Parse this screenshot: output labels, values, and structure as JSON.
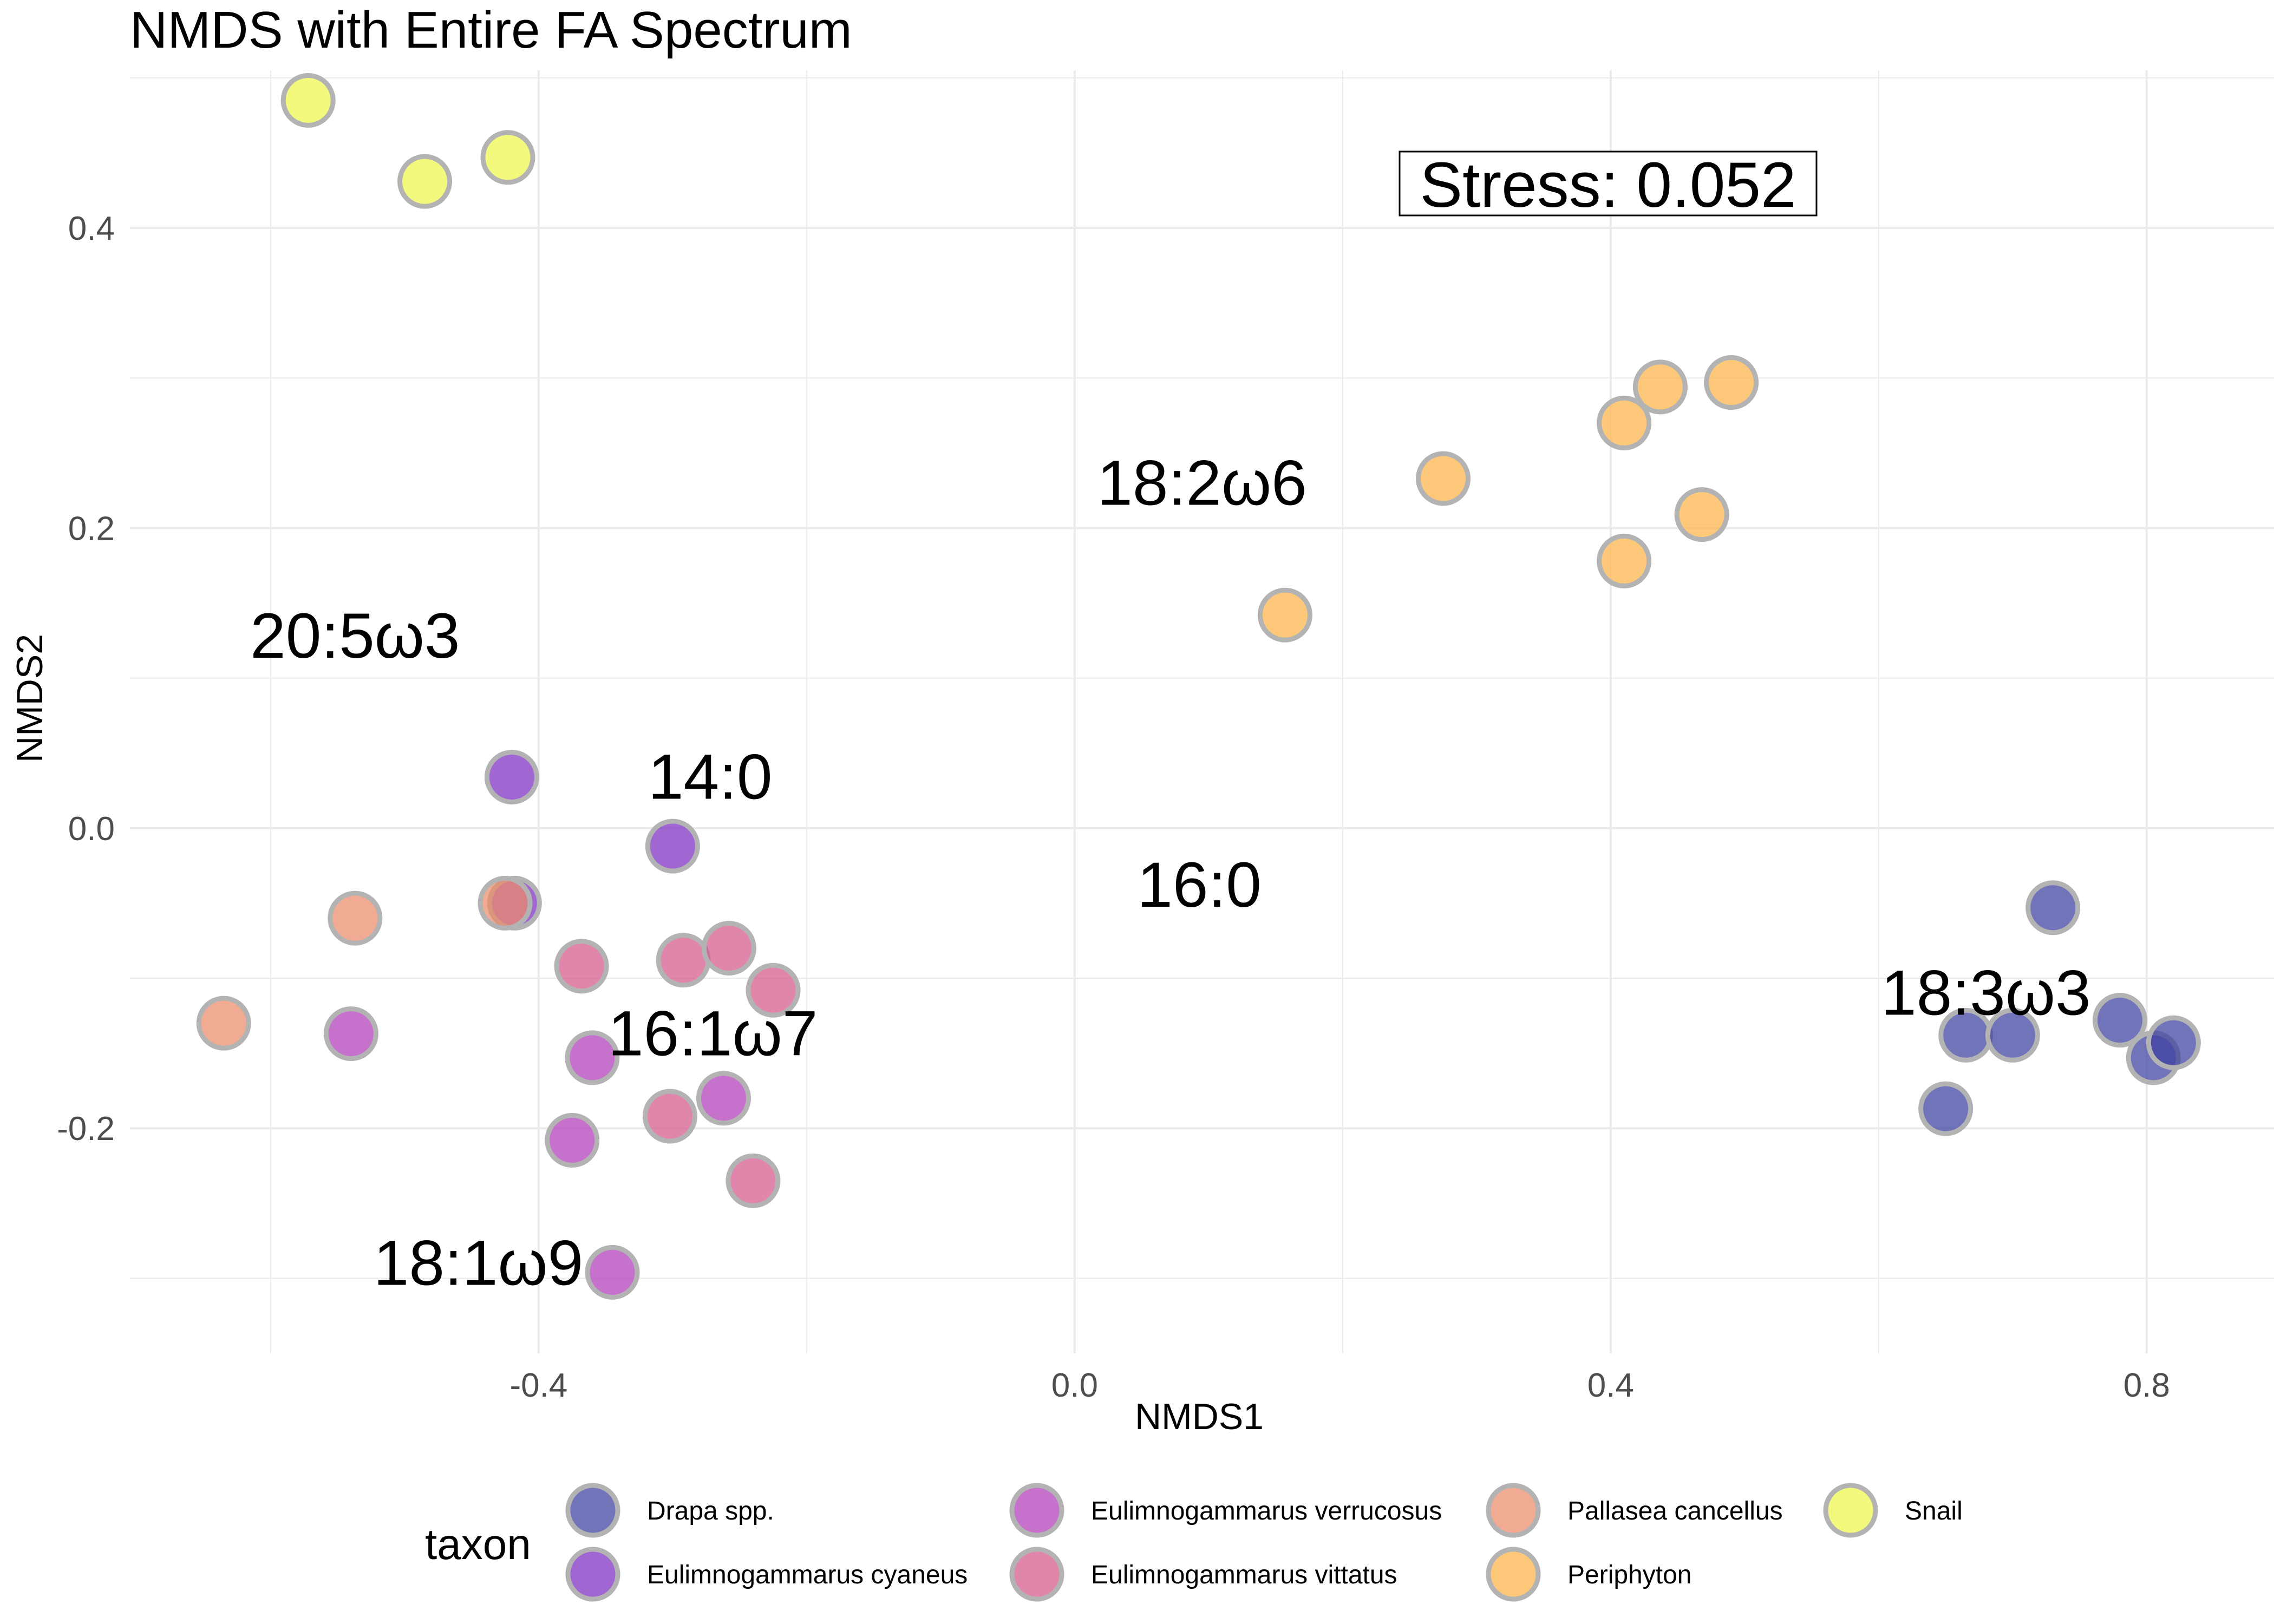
{
  "chart_data": {
    "type": "scatter",
    "title": "NMDS with Entire FA Spectrum",
    "xlabel": "NMDS1",
    "ylabel": "NMDS2",
    "xlim": [
      -0.705,
      0.895
    ],
    "ylim": [
      -0.35,
      0.505
    ],
    "x_ticks": [
      -0.4,
      0.0,
      0.4,
      0.8
    ],
    "x_tick_labels": [
      "-0.4",
      "0.0",
      "0.4",
      "0.8"
    ],
    "y_ticks": [
      -0.2,
      0.0,
      0.2,
      0.4
    ],
    "y_tick_labels": [
      "-0.2",
      "0.0",
      "0.2",
      "0.4"
    ],
    "grid": true,
    "legend_title": "taxon",
    "legend_position": "bottom",
    "stress_label": "Stress:  0.052",
    "series": [
      {
        "name": "Drapa spp.",
        "color": "#3b3fa0",
        "points": [
          [
            0.73,
            -0.053
          ],
          [
            0.665,
            -0.138
          ],
          [
            0.7,
            -0.138
          ],
          [
            0.78,
            -0.128
          ],
          [
            0.805,
            -0.153
          ],
          [
            0.82,
            -0.143
          ],
          [
            0.65,
            -0.187
          ]
        ]
      },
      {
        "name": "Eulimnogammarus cyaneus",
        "color": "#7b2bbf",
        "points": [
          [
            -0.42,
            0.034
          ],
          [
            -0.3,
            -0.012
          ],
          [
            -0.418,
            -0.05
          ]
        ]
      },
      {
        "name": "Eulimnogammarus verrucosus",
        "color": "#b03ab8",
        "points": [
          [
            -0.54,
            -0.137
          ],
          [
            -0.36,
            -0.153
          ],
          [
            -0.375,
            -0.208
          ],
          [
            -0.262,
            -0.18
          ],
          [
            -0.345,
            -0.296
          ]
        ]
      },
      {
        "name": "Eulimnogammarus vittatus",
        "color": "#d5588a",
        "points": [
          [
            -0.368,
            -0.092
          ],
          [
            -0.292,
            -0.088
          ],
          [
            -0.258,
            -0.08
          ],
          [
            -0.225,
            -0.108
          ],
          [
            -0.302,
            -0.192
          ],
          [
            -0.24,
            -0.235
          ]
        ]
      },
      {
        "name": "Pallasea cancellus",
        "color": "#ec8a6a",
        "points": [
          [
            -0.537,
            -0.06
          ],
          [
            -0.635,
            -0.13
          ],
          [
            -0.425,
            -0.05
          ]
        ]
      },
      {
        "name": "Periphyton",
        "color": "#fdb347",
        "points": [
          [
            0.157,
            0.142
          ],
          [
            0.275,
            0.233
          ],
          [
            0.41,
            0.27
          ],
          [
            0.437,
            0.294
          ],
          [
            0.49,
            0.297
          ],
          [
            0.41,
            0.178
          ],
          [
            0.468,
            0.209
          ]
        ]
      },
      {
        "name": "Snail",
        "color": "#eff74a",
        "points": [
          [
            -0.572,
            0.485
          ],
          [
            -0.485,
            0.431
          ],
          [
            -0.423,
            0.447
          ]
        ]
      }
    ],
    "annotations": [
      {
        "text": "18:2ω6",
        "x": 0.095,
        "y": 0.23
      },
      {
        "text": "20:5ω3",
        "x": -0.537,
        "y": 0.128
      },
      {
        "text": "14:0",
        "x": -0.272,
        "y": 0.034
      },
      {
        "text": "16:0",
        "x": 0.093,
        "y": -0.038
      },
      {
        "text": "18:3ω3",
        "x": 0.68,
        "y": -0.11
      },
      {
        "text": "16:1ω7",
        "x": -0.27,
        "y": -0.137
      },
      {
        "text": "18:1ω9",
        "x": -0.445,
        "y": -0.29
      }
    ]
  }
}
